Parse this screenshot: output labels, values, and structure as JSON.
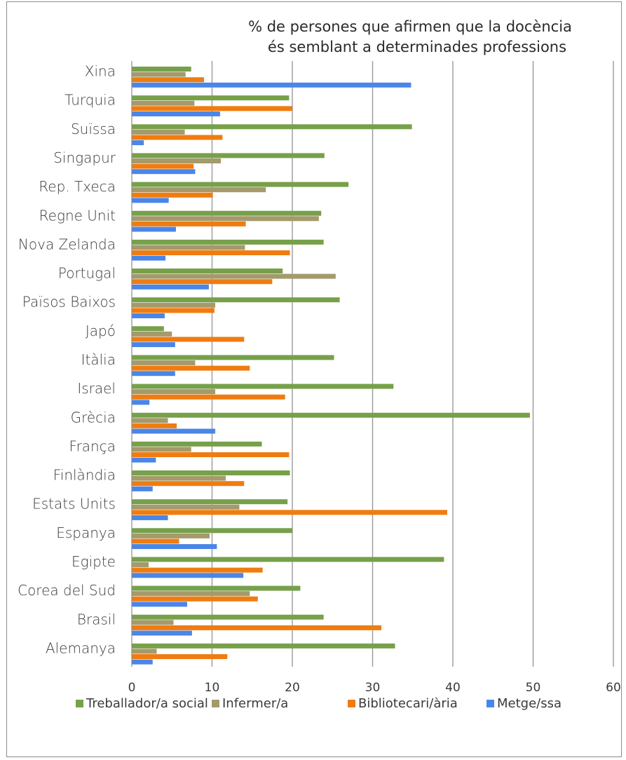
{
  "chart_data": {
    "type": "bar",
    "orientation": "horizontal",
    "title_lines": [
      "% de persones que afirmen que la docència",
      "és semblant a determinades professions"
    ],
    "categories": [
      "Xina",
      "Turquia",
      "Suïssa",
      "Singapur",
      "Rep. Txeca",
      "Regne Unit",
      "Nova Zelanda",
      "Portugal",
      "Països Baixos",
      "Japó",
      "Itàlia",
      "Israel",
      "Grècia",
      "França",
      "Finlàndia",
      "Estats Units",
      "Espanya",
      "Egipte",
      "Corea del Sud",
      "Brasil",
      "Alemanya"
    ],
    "series": [
      {
        "name": "Treballador/a social",
        "color": "#77a04a",
        "values": [
          7.4,
          19.6,
          34.9,
          24.0,
          27.0,
          23.6,
          23.9,
          18.8,
          25.9,
          4.0,
          25.2,
          32.6,
          49.6,
          16.2,
          19.7,
          19.4,
          20.0,
          38.9,
          21.0,
          23.9,
          32.8
        ]
      },
      {
        "name": "Infermer/a",
        "color": "#a49a6c",
        "values": [
          6.7,
          7.8,
          6.6,
          11.1,
          16.7,
          23.3,
          14.1,
          25.4,
          10.4,
          5.0,
          7.9,
          10.4,
          4.5,
          7.4,
          11.7,
          13.4,
          9.7,
          2.1,
          14.7,
          5.2,
          3.1
        ]
      },
      {
        "name": "Bibliotecari/ària",
        "color": "#f07c10",
        "values": [
          9.0,
          20.0,
          11.3,
          7.7,
          10.1,
          14.2,
          19.7,
          17.5,
          10.3,
          14.0,
          14.7,
          19.1,
          5.6,
          19.6,
          14.0,
          39.3,
          5.9,
          16.3,
          15.7,
          31.1,
          11.9
        ]
      },
      {
        "name": "Metge/ssa",
        "color": "#4a86e8",
        "values": [
          34.8,
          11.0,
          1.5,
          7.9,
          4.6,
          5.5,
          4.2,
          9.6,
          4.1,
          5.4,
          5.4,
          2.2,
          10.4,
          3.0,
          2.6,
          4.5,
          10.6,
          13.9,
          6.9,
          7.5,
          2.6
        ]
      }
    ],
    "xlim": [
      0,
      60
    ],
    "x_ticks": [
      "0",
      "10",
      "20",
      "30",
      "40",
      "50",
      "60"
    ],
    "grid": "vertical",
    "legend_position": "bottom"
  }
}
